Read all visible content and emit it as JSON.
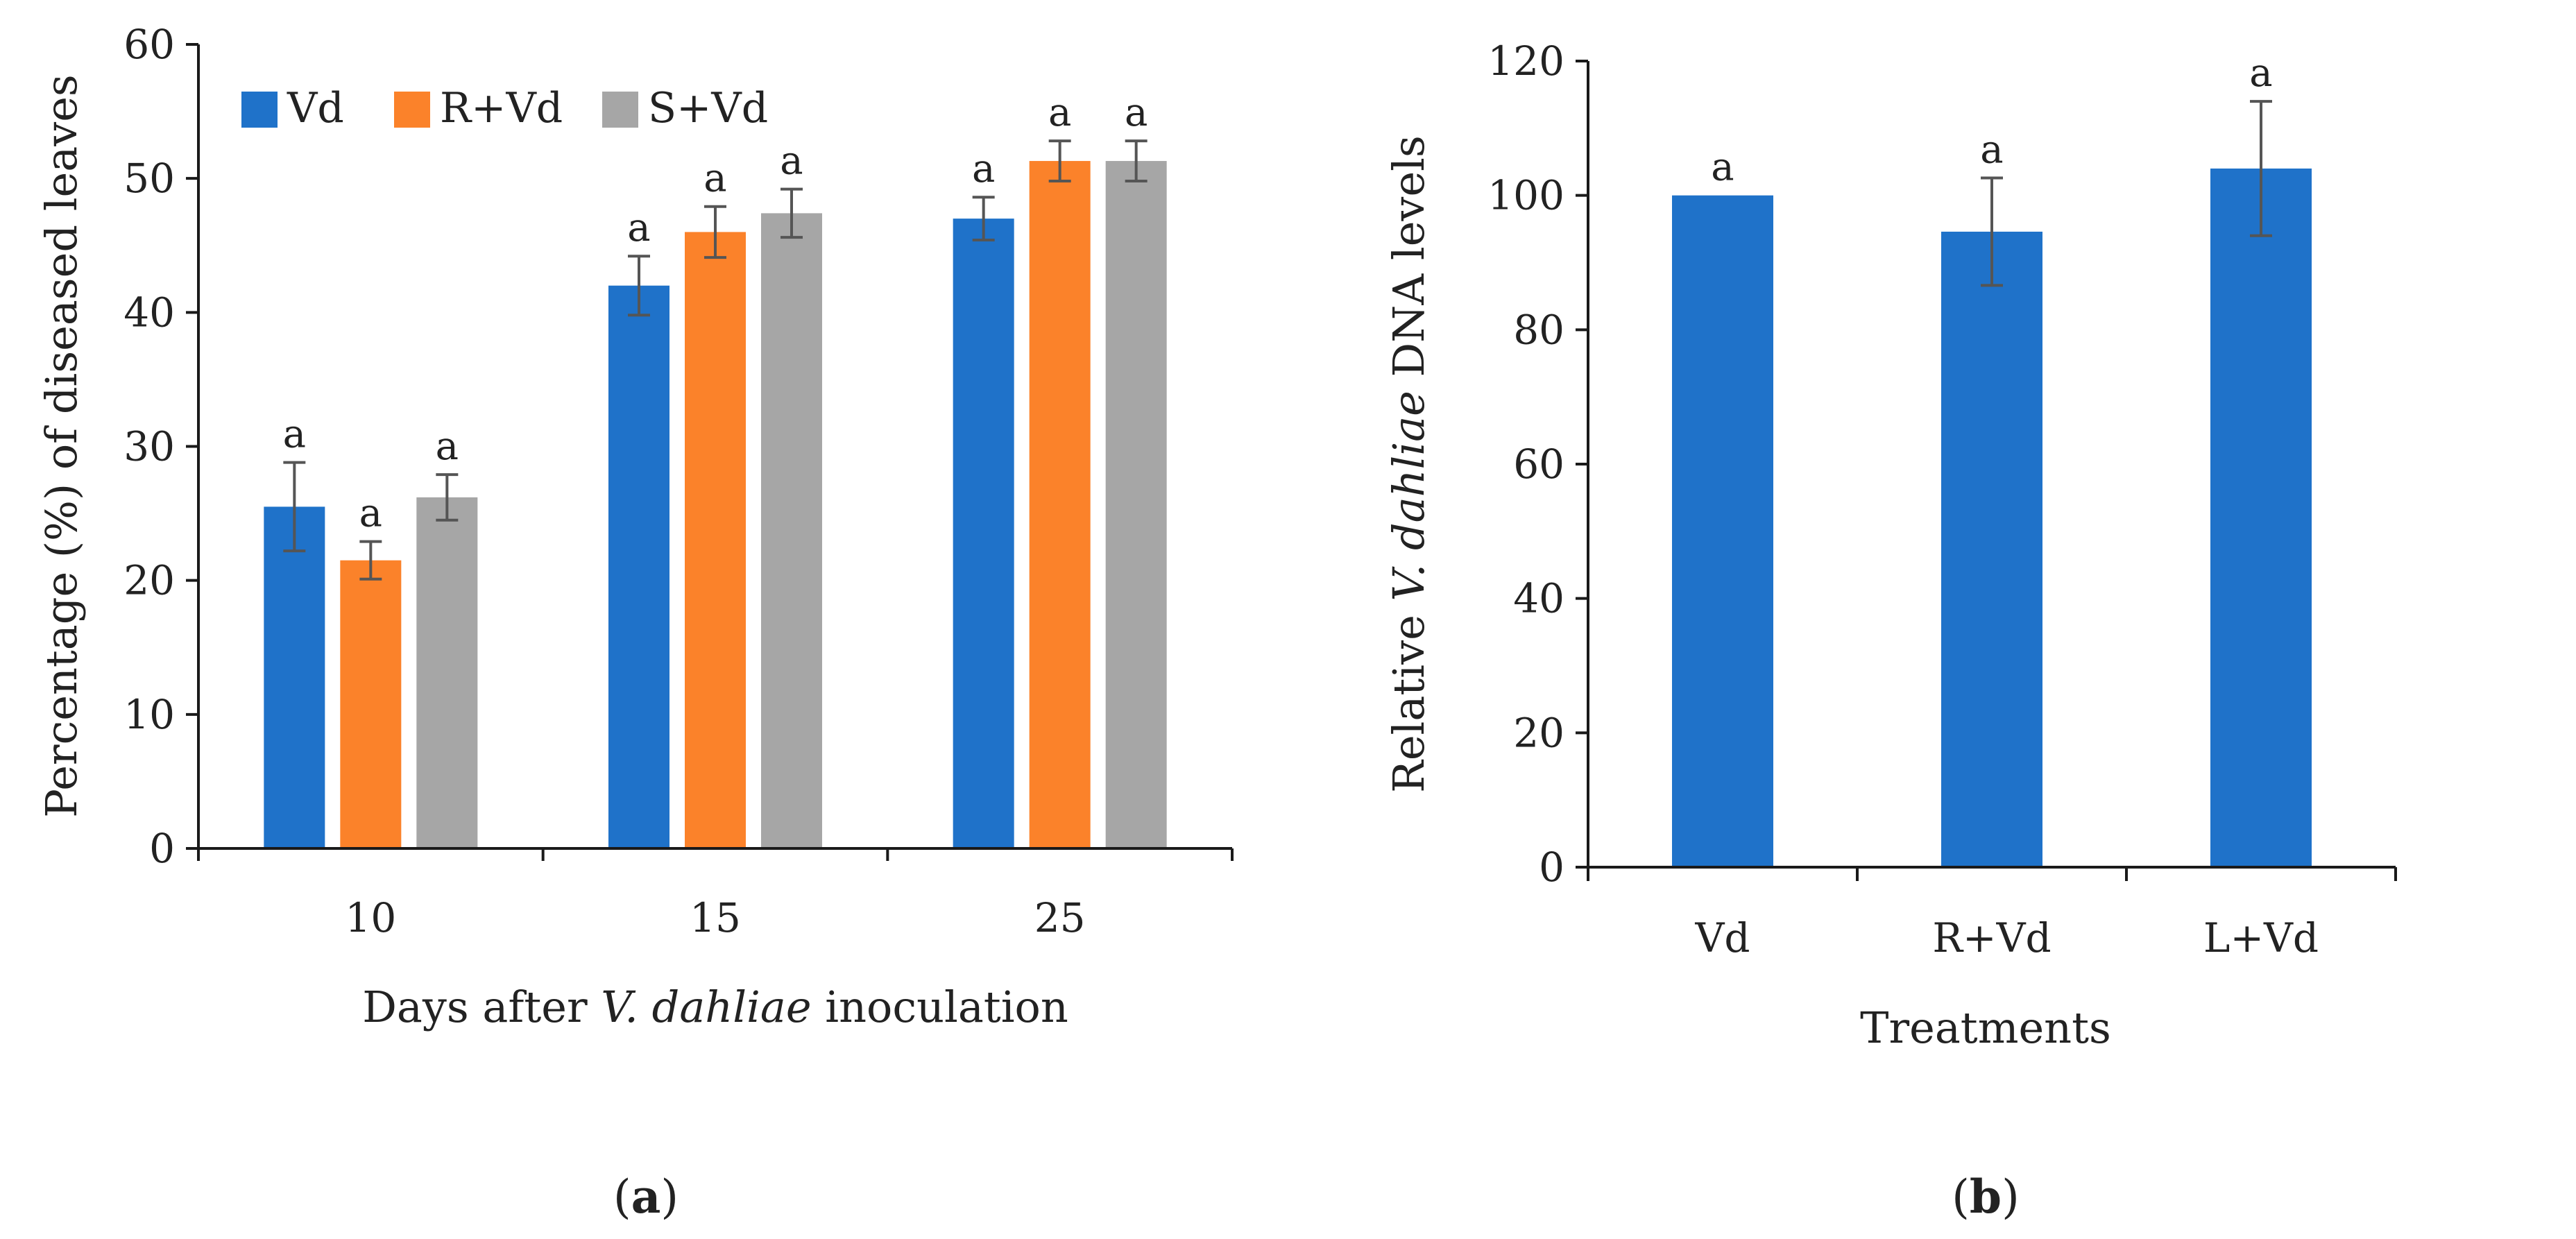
{
  "chart_data": [
    {
      "panel_label": "a",
      "type": "bar",
      "title": "",
      "categories": [
        "10",
        "15",
        "25"
      ],
      "series": [
        {
          "name": "Vd",
          "color": "#1f72c9",
          "values": [
            25.5,
            42.0,
            47.0
          ],
          "errors": [
            3.3,
            2.2,
            1.6
          ],
          "letters": [
            "a",
            "a",
            "a"
          ]
        },
        {
          "name": "R+Vd",
          "color": "#fb822a",
          "values": [
            21.5,
            46.0,
            51.3
          ],
          "errors": [
            1.4,
            1.9,
            1.5
          ],
          "letters": [
            "a",
            "a",
            "a"
          ]
        },
        {
          "name": "S+Vd",
          "color": "#a6a6a6",
          "values": [
            26.2,
            47.4,
            51.3
          ],
          "errors": [
            1.7,
            1.8,
            1.5
          ],
          "letters": [
            "a",
            "a",
            "a"
          ]
        }
      ],
      "ylim": [
        0,
        60
      ],
      "yticks": [
        "0",
        "10",
        "20",
        "30",
        "40",
        "50",
        "60"
      ],
      "ylabel": "Percentage (%)  of diseased leaves",
      "xlabel_parts": [
        "Days after ",
        "V. dahliae",
        " inoculation"
      ],
      "legend_position": "top-left",
      "grid": false
    },
    {
      "panel_label": "b",
      "type": "bar",
      "title": "",
      "categories": [
        "Vd",
        "R+Vd",
        "L+Vd"
      ],
      "series": [
        {
          "name": "Relative V. dahliae DNA levels",
          "color": "#1f72c9",
          "values": [
            100,
            94.6,
            104.0
          ],
          "errors": [
            0,
            8.0,
            10.0
          ],
          "letters": [
            "a",
            "a",
            "a"
          ]
        }
      ],
      "ylim": [
        0,
        120
      ],
      "yticks": [
        "0",
        "20",
        "40",
        "60",
        "80",
        "100",
        "120"
      ],
      "ylabel_parts": [
        "Relative ",
        "V. dahliae",
        " DNA levels"
      ],
      "xlabel": "Treatments",
      "grid": false
    }
  ]
}
